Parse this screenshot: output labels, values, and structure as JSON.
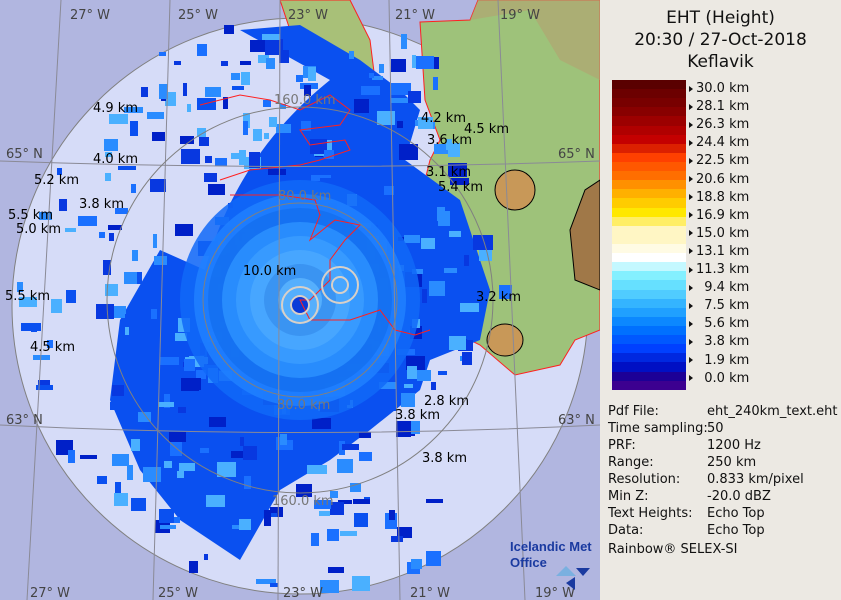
{
  "header": {
    "title": "EHT (Height)",
    "datetime": "20:30 / 27-Oct-2018",
    "site": "Keflavik"
  },
  "legend": {
    "labels": [
      "30.0 km",
      "28.1 km",
      "26.3 km",
      "24.4 km",
      "22.5 km",
      "20.6 km",
      "18.8 km",
      "16.9 km",
      "15.0 km",
      "13.1 km",
      "11.3 km",
      "  9.4 km",
      "  7.5 km",
      "  5.6 km",
      "  3.8 km",
      "  1.9 km",
      "  0.0 km"
    ],
    "colors": [
      "#5a0000",
      "#6c0000",
      "#780000",
      "#880000",
      "#9c0000",
      "#b00000",
      "#c40000",
      "#dc2000",
      "#ff4000",
      "#ff5800",
      "#ff6e00",
      "#ff9000",
      "#ffb000",
      "#ffcc00",
      "#ffe800",
      "#ffee66",
      "#fff6c4",
      "#fff6c4",
      "#fffbe4",
      "#ffffff",
      "#c4f8ff",
      "#84f0ff",
      "#66e0ff",
      "#50ccff",
      "#34b4ff",
      "#20a0ff",
      "#0c88ff",
      "#0070ff",
      "#0058ff",
      "#0040ff",
      "#0028e0",
      "#0010c4",
      "#1c0096",
      "#3c0090"
    ]
  },
  "info": [
    {
      "label": "Pdf File:",
      "value": "eht_240km_text.eht"
    },
    {
      "label": "Time sampling:",
      "value": "50"
    },
    {
      "label": "PRF:",
      "value": "1200 Hz"
    },
    {
      "label": "Range:",
      "value": "250 km"
    },
    {
      "label": "Resolution:",
      "value": "0.833 km/pixel"
    },
    {
      "label": "Min Z:",
      "value": "-20.0 dBZ"
    },
    {
      "label": "Text Heights:",
      "value": "Echo Top"
    },
    {
      "label": "Data:",
      "value": "Echo Top"
    }
  ],
  "credit": "Rainbow® SELEX-SI",
  "map": {
    "lon_labels_top": [
      "27° W",
      "25° W",
      "23° W",
      "21° W",
      "19° W"
    ],
    "lon_labels_bottom": [
      "27° W",
      "25° W",
      "23° W",
      "21° W",
      "19° W"
    ],
    "lat_labels": [
      "65° N",
      "63° N"
    ],
    "range_labels": [
      "80.0 km",
      "160.0 km",
      "80.0 km",
      "160.0 km"
    ],
    "echo_tops": [
      "4.9 km",
      "4.0 km",
      "5.2 km",
      "3.8 km",
      "5.5 km",
      "5.0 km",
      "5.5 km",
      "4.5 km",
      "10.0 km",
      "4.2 km",
      "4.5 km",
      "3.6 km",
      "3.1 km",
      "5.4 km",
      "3.2 km",
      "2.8 km",
      "3.8 km",
      "3.8 km"
    ],
    "logo": "Icelandic Met Office",
    "colors": {
      "background": "#b1b6e0",
      "coverage": "#d6dcf8",
      "land": "#9ec27a",
      "coast": "#ff2020",
      "echo": "#0a55f0"
    }
  }
}
